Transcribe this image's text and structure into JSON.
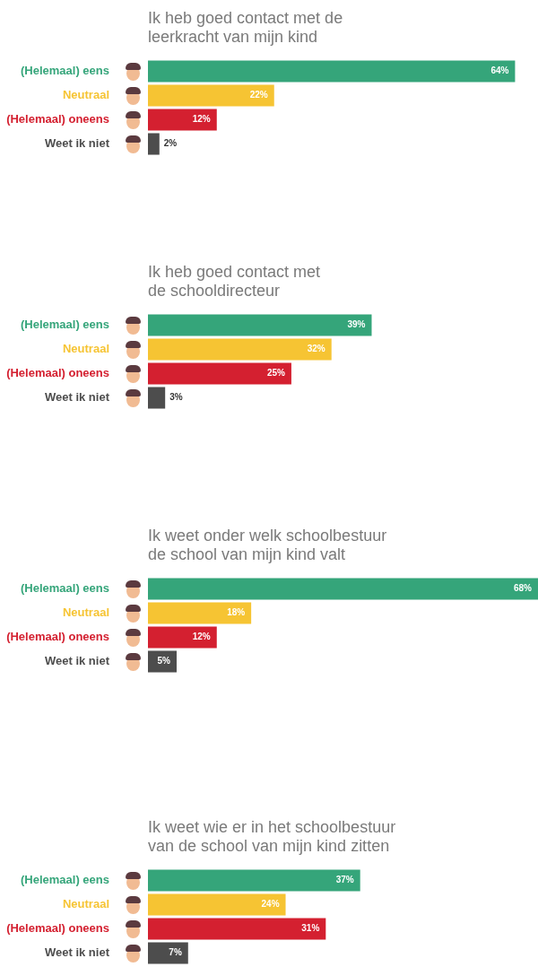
{
  "chart_data": [
    {
      "type": "bar",
      "orientation": "horizontal",
      "title": "Ik heb goed contact met de\nleerkracht van mijn kind",
      "categories": [
        "(Helemaal) eens",
        "Neutraal",
        "(Helemaal) oneens",
        "Weet ik niet"
      ],
      "values": [
        64,
        22,
        12,
        2
      ],
      "colors": [
        "#35a57a",
        "#f6c433",
        "#d42030",
        "#4d4d4d"
      ],
      "value_labels": [
        "64%",
        "22%",
        "12%",
        "2%"
      ]
    },
    {
      "type": "bar",
      "orientation": "horizontal",
      "title": "Ik heb goed contact met\nde schooldirecteur",
      "categories": [
        "(Helemaal) eens",
        "Neutraal",
        "(Helemaal) oneens",
        "Weet ik niet"
      ],
      "values": [
        39,
        32,
        25,
        3
      ],
      "colors": [
        "#35a57a",
        "#f6c433",
        "#d42030",
        "#4d4d4d"
      ],
      "value_labels": [
        "39%",
        "32%",
        "25%",
        "3%"
      ]
    },
    {
      "type": "bar",
      "orientation": "horizontal",
      "title": "Ik weet onder welk schoolbestuur\nde school van mijn kind valt",
      "categories": [
        "(Helemaal) eens",
        "Neutraal",
        "(Helemaal) oneens",
        "Weet ik niet"
      ],
      "values": [
        68,
        18,
        12,
        5
      ],
      "colors": [
        "#35a57a",
        "#f6c433",
        "#d42030",
        "#4d4d4d"
      ],
      "value_labels": [
        "68%",
        "18%",
        "12%",
        "5%"
      ]
    },
    {
      "type": "bar",
      "orientation": "horizontal",
      "title": "Ik weet wie er in het schoolbestuur\nvan de school van mijn kind zitten",
      "categories": [
        "(Helemaal) eens",
        "Neutraal",
        "(Helemaal) oneens",
        "Weet ik niet"
      ],
      "values": [
        37,
        24,
        31,
        7
      ],
      "colors": [
        "#35a57a",
        "#f6c433",
        "#d42030",
        "#4d4d4d"
      ],
      "value_labels": [
        "37%",
        "24%",
        "31%",
        "7%"
      ]
    }
  ]
}
